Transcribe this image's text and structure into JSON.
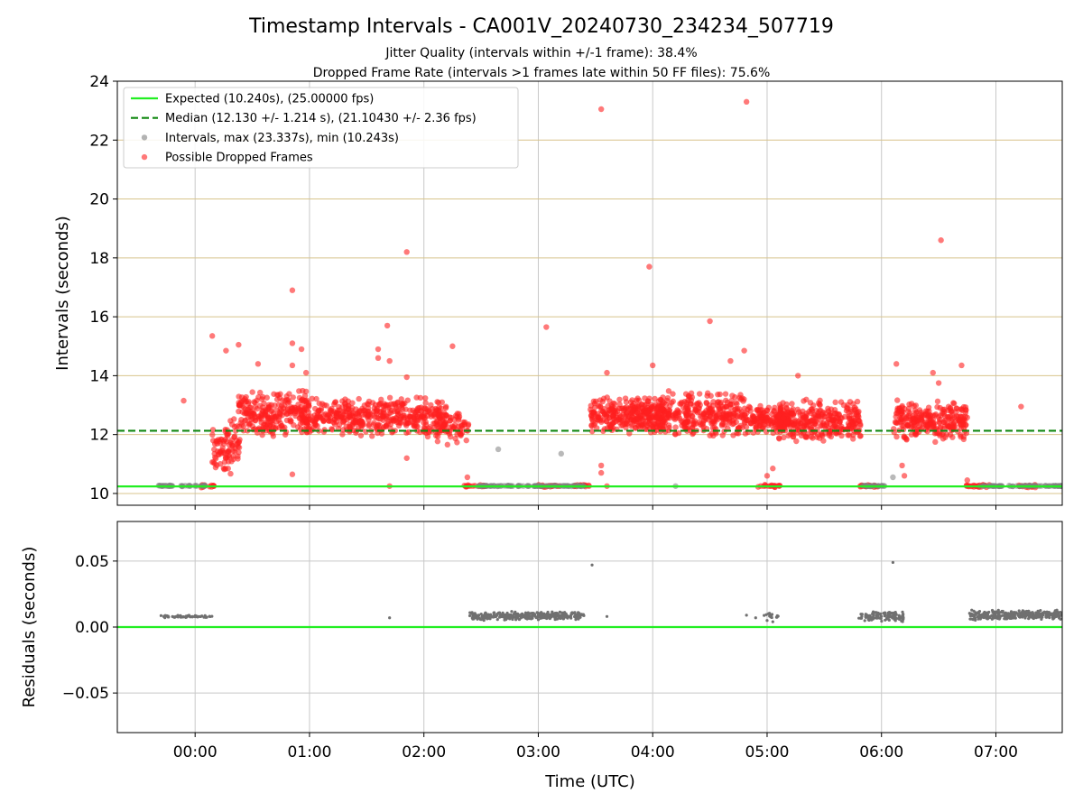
{
  "chart_data": [
    {
      "type": "scatter",
      "title": "Timestamp Intervals - CA001V_20240730_234234_507719",
      "subtitle_1": "Jitter Quality (intervals within +/-1 frame): 38.4%",
      "subtitle_2": "Dropped Frame Rate (intervals >1 frames late within 50 FF files): 75.6%",
      "ylabel": "Intervals (seconds)",
      "ylim": [
        9.6,
        24
      ],
      "xlim_hours": [
        -0.68,
        7.58
      ],
      "yticks": [
        10,
        12,
        14,
        16,
        18,
        20,
        22,
        24
      ],
      "ytick_labels": [
        "10",
        "12",
        "14",
        "16",
        "18",
        "20",
        "22",
        "24"
      ],
      "grid": true,
      "legend_position": "upper-left",
      "expected_interval": 10.24,
      "median_interval": 12.13,
      "legend": [
        {
          "label": "Expected (10.240s), (25.00000 fps)",
          "marker": "solid-line",
          "color": "#22ee22"
        },
        {
          "label": "Median (12.130 +/- 1.214 s), (21.10430 +/- 2.36 fps)",
          "marker": "dashed-line",
          "color": "#118811"
        },
        {
          "label": "Intervals, max (23.337s), min (10.243s)",
          "marker": "dot",
          "color": "#808080"
        },
        {
          "label": "Possible Dropped Frames",
          "marker": "dot",
          "color": "#ff2020"
        }
      ],
      "series": [
        {
          "name": "Intervals, max (23.337s), min (10.243s)",
          "points": [
            [
              -0.3,
              10.26
            ],
            [
              2.65,
              11.5
            ],
            [
              3.2,
              11.35
            ],
            [
              6.1,
              10.55
            ],
            [
              4.2,
              10.25
            ]
          ]
        },
        {
          "name": "Possible Dropped Frames",
          "points": [
            [
              -0.1,
              13.15
            ],
            [
              0.15,
              15.35
            ],
            [
              0.27,
              14.85
            ],
            [
              0.38,
              15.05
            ],
            [
              0.55,
              14.4
            ],
            [
              0.85,
              16.9
            ],
            [
              0.85,
              15.1
            ],
            [
              0.93,
              14.9
            ],
            [
              0.85,
              14.35
            ],
            [
              0.97,
              14.1
            ],
            [
              0.85,
              10.65
            ],
            [
              1.6,
              14.9
            ],
            [
              1.6,
              14.6
            ],
            [
              1.68,
              15.7
            ],
            [
              1.7,
              14.5
            ],
            [
              1.7,
              10.25
            ],
            [
              1.85,
              18.2
            ],
            [
              1.85,
              13.95
            ],
            [
              1.85,
              11.2
            ],
            [
              2.25,
              15.0
            ],
            [
              2.38,
              10.55
            ],
            [
              3.07,
              15.65
            ],
            [
              3.55,
              23.05
            ],
            [
              3.6,
              14.1
            ],
            [
              3.55,
              10.7
            ],
            [
              3.55,
              10.95
            ],
            [
              3.6,
              10.25
            ],
            [
              3.97,
              17.7
            ],
            [
              4.0,
              14.35
            ],
            [
              4.5,
              15.85
            ],
            [
              4.68,
              14.5
            ],
            [
              4.8,
              14.85
            ],
            [
              4.82,
              23.3
            ],
            [
              5.0,
              10.6
            ],
            [
              5.05,
              10.85
            ],
            [
              5.27,
              14.0
            ],
            [
              6.13,
              14.4
            ],
            [
              6.18,
              10.95
            ],
            [
              6.2,
              10.6
            ],
            [
              6.45,
              14.1
            ],
            [
              6.5,
              13.75
            ],
            [
              6.52,
              18.6
            ],
            [
              6.47,
              11.75
            ],
            [
              6.7,
              14.35
            ],
            [
              6.75,
              10.45
            ],
            [
              7.22,
              12.95
            ]
          ]
        }
      ],
      "clusters": [
        {
          "series": "Possible Dropped Frames",
          "x_range": [
            0.05,
            0.17
          ],
          "y_range": [
            10.2,
            10.3
          ],
          "count": 14
        },
        {
          "series": "Possible Dropped Frames",
          "x_range": [
            0.15,
            0.4
          ],
          "y_range": [
            10.6,
            12.6
          ],
          "count": 90
        },
        {
          "series": "Possible Dropped Frames",
          "x_range": [
            0.38,
            1.0
          ],
          "y_range": [
            11.8,
            13.6
          ],
          "count": 260
        },
        {
          "series": "Possible Dropped Frames",
          "x_range": [
            0.95,
            2.2
          ],
          "y_range": [
            11.9,
            13.3
          ],
          "count": 460
        },
        {
          "series": "Possible Dropped Frames",
          "x_range": [
            2.1,
            2.4
          ],
          "y_range": [
            11.6,
            12.9
          ],
          "count": 70
        },
        {
          "series": "Possible Dropped Frames",
          "x_range": [
            2.35,
            2.55
          ],
          "y_range": [
            10.2,
            10.3
          ],
          "count": 22
        },
        {
          "series": "Possible Dropped Frames",
          "x_range": [
            3.0,
            3.2
          ],
          "y_range": [
            10.2,
            10.3
          ],
          "count": 24
        },
        {
          "series": "Possible Dropped Frames",
          "x_range": [
            3.3,
            3.45
          ],
          "y_range": [
            10.2,
            10.3
          ],
          "count": 16
        },
        {
          "series": "Possible Dropped Frames",
          "x_range": [
            3.45,
            4.1
          ],
          "y_range": [
            12.0,
            13.3
          ],
          "count": 300
        },
        {
          "series": "Possible Dropped Frames",
          "x_range": [
            4.0,
            4.8
          ],
          "y_range": [
            11.9,
            13.5
          ],
          "count": 330
        },
        {
          "series": "Possible Dropped Frames",
          "x_range": [
            4.8,
            5.2
          ],
          "y_range": [
            12.0,
            13.1
          ],
          "count": 160
        },
        {
          "series": "Possible Dropped Frames",
          "x_range": [
            4.92,
            5.12
          ],
          "y_range": [
            10.2,
            10.3
          ],
          "count": 20
        },
        {
          "series": "Possible Dropped Frames",
          "x_range": [
            5.1,
            5.82
          ],
          "y_range": [
            11.7,
            13.2
          ],
          "count": 310
        },
        {
          "series": "Possible Dropped Frames",
          "x_range": [
            5.8,
            5.97
          ],
          "y_range": [
            10.2,
            10.3
          ],
          "count": 22
        },
        {
          "series": "Possible Dropped Frames",
          "x_range": [
            6.1,
            6.75
          ],
          "y_range": [
            11.8,
            13.2
          ],
          "count": 260
        },
        {
          "series": "Possible Dropped Frames",
          "x_range": [
            6.73,
            6.95
          ],
          "y_range": [
            10.2,
            10.3
          ],
          "count": 26
        },
        {
          "series": "Possible Dropped Frames",
          "x_range": [
            7.2,
            7.35
          ],
          "y_range": [
            10.2,
            10.3
          ],
          "count": 18
        },
        {
          "series": "Intervals, max (23.337s), min (10.243s)",
          "x_range": [
            -0.32,
            0.1
          ],
          "y_range": [
            10.24,
            10.28
          ],
          "count": 40
        },
        {
          "series": "Intervals, max (23.337s), min (10.243s)",
          "x_range": [
            2.45,
            3.4
          ],
          "y_range": [
            10.24,
            10.27
          ],
          "count": 90
        },
        {
          "series": "Intervals, max (23.337s), min (10.243s)",
          "x_range": [
            5.82,
            6.05
          ],
          "y_range": [
            10.24,
            10.27
          ],
          "count": 25
        },
        {
          "series": "Intervals, max (23.337s), min (10.243s)",
          "x_range": [
            6.85,
            7.58
          ],
          "y_range": [
            10.24,
            10.27
          ],
          "count": 70
        }
      ]
    },
    {
      "type": "scatter",
      "xlabel": "Time (UTC)",
      "ylabel": "Residuals (seconds)",
      "ylim": [
        -0.08,
        0.08
      ],
      "xlim_hours": [
        -0.68,
        7.58
      ],
      "yticks": [
        -0.05,
        0,
        0.05
      ],
      "ytick_labels": [
        "−0.05",
        "0.00",
        "0.05"
      ],
      "xticks_hours": [
        0,
        1,
        2,
        3,
        4,
        5,
        6,
        7
      ],
      "xtick_labels": [
        "00:00",
        "01:00",
        "02:00",
        "03:00",
        "04:00",
        "05:00",
        "06:00",
        "07:00"
      ],
      "grid": true,
      "zero_line_color": "#22ee22",
      "series": [
        {
          "name": "",
          "points": [
            [
              1.7,
              0.007
            ],
            [
              3.47,
              0.047
            ],
            [
              3.6,
              0.008
            ],
            [
              4.82,
              0.009
            ],
            [
              6.1,
              0.049
            ],
            [
              5.0,
              0.005
            ],
            [
              5.05,
              0.004
            ],
            [
              4.9,
              0.007
            ]
          ]
        }
      ],
      "clusters": [
        {
          "x_range": [
            -0.3,
            0.15
          ],
          "y_range": [
            0.007,
            0.009
          ],
          "count": 60
        },
        {
          "x_range": [
            2.4,
            3.4
          ],
          "y_range": [
            0.005,
            0.012
          ],
          "count": 320
        },
        {
          "x_range": [
            4.95,
            5.12
          ],
          "y_range": [
            0.006,
            0.011
          ],
          "count": 14
        },
        {
          "x_range": [
            5.8,
            6.2
          ],
          "y_range": [
            0.004,
            0.012
          ],
          "count": 120
        },
        {
          "x_range": [
            6.77,
            7.58
          ],
          "y_range": [
            0.005,
            0.013
          ],
          "count": 300
        }
      ]
    }
  ]
}
